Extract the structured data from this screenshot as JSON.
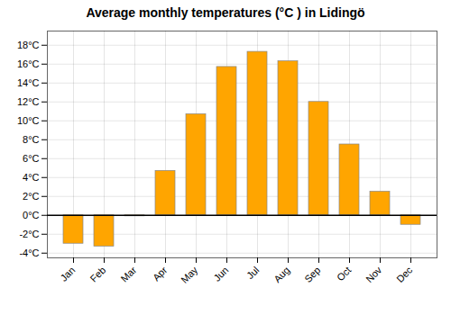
{
  "chart_data": {
    "type": "bar",
    "title": "Average monthly temperatures (°C ) in Lidingö",
    "categories": [
      "Jan",
      "Feb",
      "Mar",
      "Apr",
      "May",
      "Jun",
      "Jul",
      "Aug",
      "Sep",
      "Oct",
      "Nov",
      "Dec"
    ],
    "values": [
      -3.0,
      -3.3,
      -0.1,
      4.7,
      10.7,
      15.7,
      17.3,
      16.3,
      12.0,
      7.5,
      2.5,
      -1.0
    ],
    "color": "#FFA500",
    "ylim": [
      -4.5,
      19.5
    ],
    "yticks": [
      {
        "value": -4,
        "label": "-4°C"
      },
      {
        "value": -2,
        "label": "-2°C"
      },
      {
        "value": 0,
        "label": "0°C"
      },
      {
        "value": 2,
        "label": "2°C"
      },
      {
        "value": 4,
        "label": "4°C"
      },
      {
        "value": 6,
        "label": "6°C"
      },
      {
        "value": 8,
        "label": "8°C"
      },
      {
        "value": 10,
        "label": "10°C"
      },
      {
        "value": 12,
        "label": "12°C"
      },
      {
        "value": 14,
        "label": "14°C"
      },
      {
        "value": 16,
        "label": "16°C"
      },
      {
        "value": 18,
        "label": "18°C"
      }
    ],
    "grid": true
  }
}
